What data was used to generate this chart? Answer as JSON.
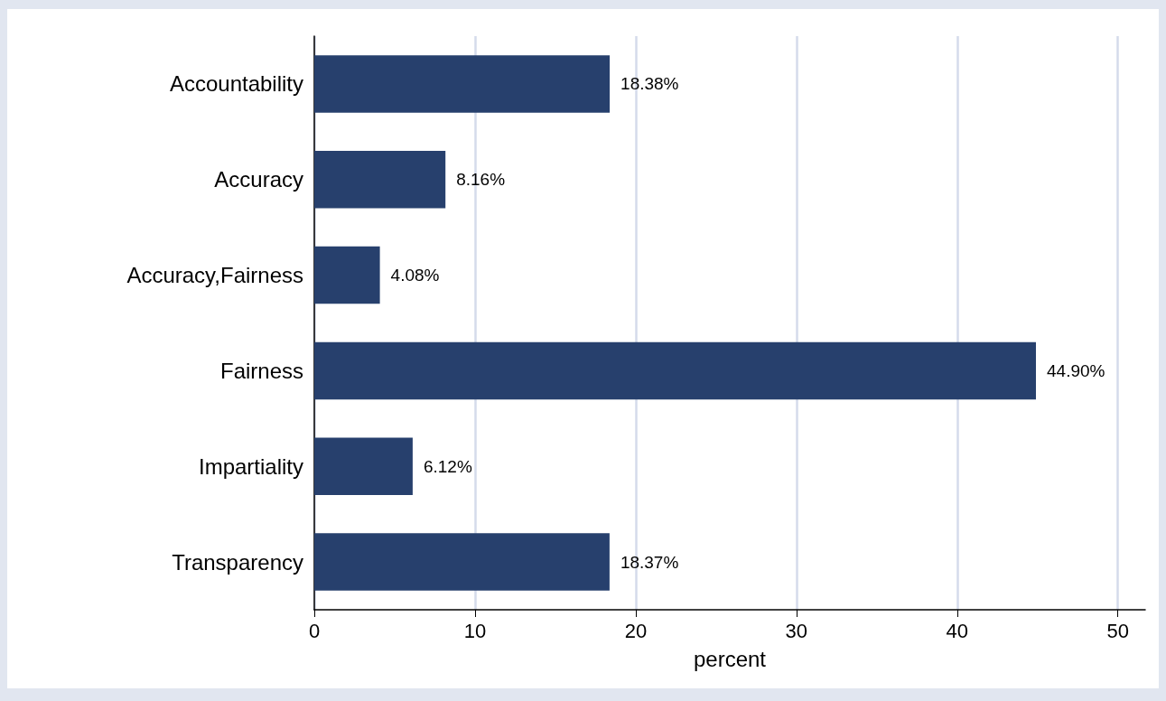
{
  "chart_data": {
    "type": "bar",
    "orientation": "horizontal",
    "categories": [
      "Accountability",
      "Accuracy",
      "Accuracy,Fairness",
      "Fairness",
      "Impartiality",
      "Transparency"
    ],
    "values": [
      18.38,
      8.16,
      4.08,
      44.9,
      6.12,
      18.37
    ],
    "value_labels": [
      "18.38%",
      "8.16%",
      "4.08%",
      "44.90%",
      "6.12%",
      "18.37%"
    ],
    "color": "#27406d",
    "xlabel": "percent",
    "xlim": [
      0,
      51.7
    ],
    "xticks": [
      0,
      10,
      20,
      30,
      40,
      50
    ],
    "grid": "x"
  }
}
